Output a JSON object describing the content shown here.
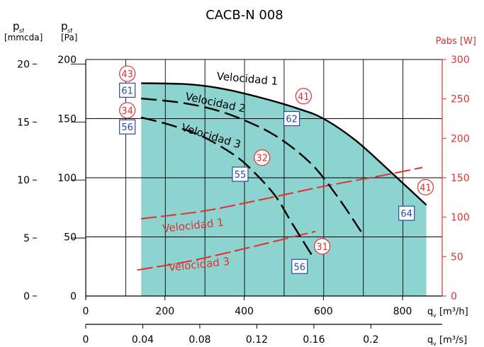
{
  "chart_data": {
    "type": "line",
    "title": "CACB-N 008",
    "colors": {
      "fill": "#8dd3d0",
      "curve": "#000000",
      "power": "#e03030",
      "box": "#2a4aa0",
      "axis": "#000000"
    },
    "axes": {
      "q_m3h": {
        "ticks": [
          "0",
          "200",
          "400",
          "600",
          "800"
        ],
        "label_q": "q",
        "label_sub": "v",
        "label_unit": "[m³/h]",
        "range": [
          0,
          900
        ]
      },
      "q_m3s": {
        "ticks": [
          "0",
          "0.04",
          "0.08",
          "0.12",
          "0.16",
          "0.2"
        ],
        "label_q": "q",
        "label_sub": "v",
        "label_unit": "[m³/s]"
      },
      "pressure_pa": {
        "ticks": [
          "0",
          "50",
          "100",
          "150",
          "200"
        ],
        "label_p": "p",
        "label_sub": "sf",
        "label_unit": "[Pa]",
        "range": [
          0,
          200
        ]
      },
      "pressure_mmcda": {
        "ticks": [
          "0",
          "5",
          "10",
          "15",
          "20"
        ],
        "label_p": "p",
        "label_sub": "sf",
        "label_unit": "[mmcda]"
      },
      "power_w": {
        "ticks": [
          "0",
          "50",
          "100",
          "150",
          "200",
          "250",
          "300"
        ],
        "label": "Pabs [W]",
        "range": [
          0,
          300
        ]
      }
    },
    "operating_area": {
      "x": [
        140,
        140,
        860,
        860
      ],
      "y": [
        0,
        180,
        77,
        0
      ]
    },
    "pressure_curves": [
      {
        "name": "Velocidad 1",
        "style": "solid",
        "x": [
          140,
          260,
          350,
          450,
          540,
          600,
          680,
          760,
          860
        ],
        "y": [
          180,
          179,
          175,
          167,
          158,
          150,
          132,
          108,
          77
        ]
      },
      {
        "name": "Velocidad 2",
        "style": "dashed",
        "x": [
          140,
          250,
          350,
          450,
          520,
          580,
          640,
          700
        ],
        "y": [
          167,
          163,
          155,
          141,
          126,
          108,
          82,
          52
        ]
      },
      {
        "name": "Velocidad 3",
        "style": "dashed",
        "x": [
          140,
          220,
          300,
          380,
          430,
          480,
          520,
          570
        ],
        "y": [
          151,
          144,
          134,
          118,
          103,
          84,
          62,
          35
        ]
      }
    ],
    "power_curves": [
      {
        "name": "Velocidad 1",
        "x": [
          140,
          300,
          450,
          600,
          750,
          850
        ],
        "y": [
          98,
          108,
          123,
          139,
          153,
          163
        ]
      },
      {
        "name": "Velocidad 3",
        "x": [
          130,
          250,
          350,
          450,
          580
        ],
        "y": [
          33,
          43,
          54,
          66,
          82
        ]
      }
    ],
    "curve_labels": [
      {
        "text": "Velocidad 1",
        "color": "black",
        "x": 330,
        "y": 183,
        "rot": 5
      },
      {
        "text": "Velocidad 2",
        "color": "black",
        "x": 250,
        "y": 166,
        "rot": 12
      },
      {
        "text": "Velocidad 3",
        "color": "black",
        "x": 240,
        "y": 140,
        "rot": 17
      },
      {
        "text": "Velocidad 1",
        "color": "red",
        "x": 195,
        "y": 54,
        "rot": -6
      },
      {
        "text": "Velocidad 3",
        "color": "red",
        "x": 210,
        "y": 21,
        "rot": -6
      }
    ],
    "noise_boxes": [
      {
        "text": "61",
        "x": 105,
        "y": 174
      },
      {
        "text": "56",
        "x": 105,
        "y": 143
      },
      {
        "text": "62",
        "x": 520,
        "y": 150
      },
      {
        "text": "55",
        "x": 390,
        "y": 103
      },
      {
        "text": "64",
        "x": 810,
        "y": 70
      },
      {
        "text": "56",
        "x": 540,
        "y": 25
      }
    ],
    "power_circles": [
      {
        "text": "43",
        "x": 105,
        "y": 188
      },
      {
        "text": "34",
        "x": 105,
        "y": 157
      },
      {
        "text": "41",
        "x": 550,
        "y": 169
      },
      {
        "text": "32",
        "x": 445,
        "y": 117
      },
      {
        "text": "41",
        "x": 858,
        "y": 92
      },
      {
        "text": "31",
        "x": 597,
        "y": 42
      }
    ]
  }
}
